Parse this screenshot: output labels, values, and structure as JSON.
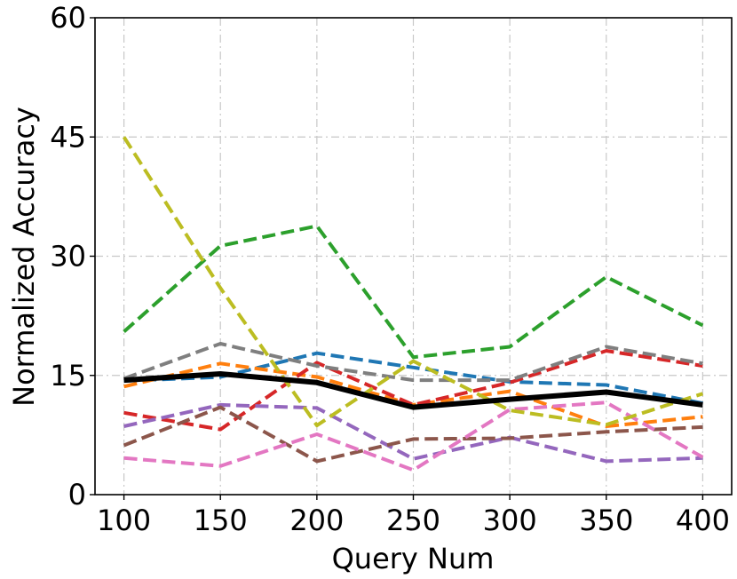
{
  "chart_data": {
    "type": "line",
    "title": "",
    "xlabel": "Query Num",
    "ylabel": "Normalized Accuracy",
    "x": [
      100,
      150,
      200,
      250,
      300,
      350,
      400
    ],
    "xticks": [
      "100",
      "150",
      "200",
      "250",
      "300",
      "350",
      "400"
    ],
    "yticks": [
      "0",
      "15",
      "30",
      "45",
      "60"
    ],
    "xlim": [
      85,
      415
    ],
    "ylim": [
      0,
      60
    ],
    "grid": true,
    "series": [
      {
        "color": "#1f77b4",
        "style": "dashed",
        "values": [
          14.3,
          14.8,
          17.8,
          16.0,
          14.2,
          13.8,
          11.5
        ]
      },
      {
        "color": "#ff7f0e",
        "style": "dashed",
        "values": [
          13.6,
          16.5,
          14.8,
          11.3,
          13.0,
          8.6,
          9.8
        ]
      },
      {
        "color": "#2ca02c",
        "style": "dashed",
        "values": [
          20.5,
          31.3,
          33.8,
          17.3,
          18.6,
          27.4,
          21.3
        ]
      },
      {
        "color": "#d62728",
        "style": "dashed",
        "values": [
          10.3,
          8.2,
          16.6,
          11.3,
          14.1,
          18.1,
          16.2
        ]
      },
      {
        "color": "#9467bd",
        "style": "dashed",
        "values": [
          8.6,
          11.3,
          10.9,
          4.5,
          7.2,
          4.2,
          4.6
        ]
      },
      {
        "color": "#8c564b",
        "style": "dashed",
        "values": [
          6.2,
          11.0,
          4.2,
          7.0,
          7.1,
          7.9,
          8.5
        ]
      },
      {
        "color": "#e377c2",
        "style": "dashed",
        "values": [
          4.6,
          3.6,
          7.6,
          3.1,
          10.7,
          11.6,
          4.7
        ]
      },
      {
        "color": "#7f7f7f",
        "style": "dashed",
        "values": [
          14.6,
          19.0,
          16.2,
          14.4,
          14.4,
          18.6,
          16.5
        ]
      },
      {
        "color": "#bcbd22",
        "style": "dashed",
        "values": [
          45.0,
          26.0,
          8.7,
          16.8,
          10.6,
          8.8,
          12.7
        ]
      },
      {
        "color": "#000000",
        "style": "solid",
        "values": [
          14.4,
          15.2,
          14.1,
          11.0,
          12.0,
          12.9,
          11.3
        ]
      }
    ]
  }
}
